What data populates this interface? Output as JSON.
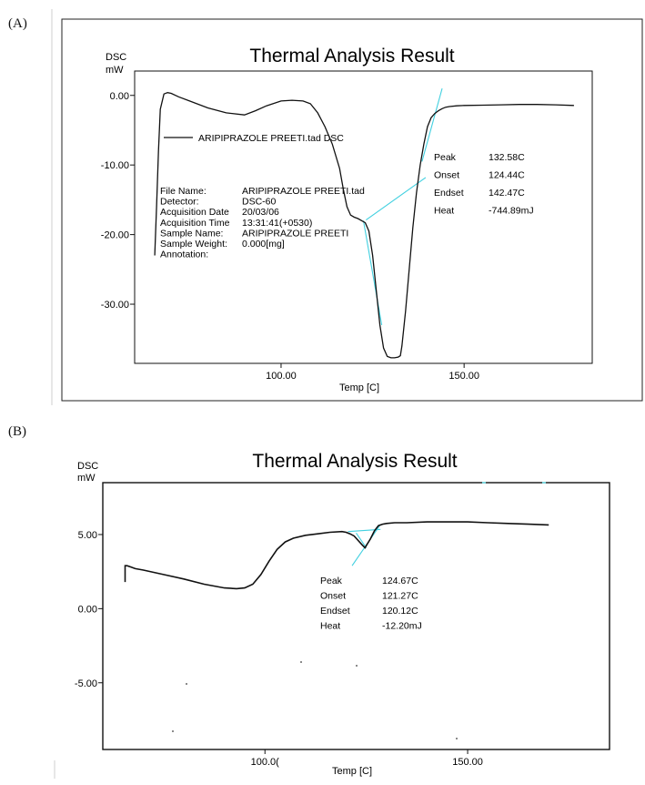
{
  "panels": [
    {
      "label": "(A)",
      "chart_data": {
        "type": "line",
        "title": "Thermal Analysis Result",
        "ylabel_line1": "DSC",
        "ylabel_line2": "mW",
        "xlabel": "Temp  [C]",
        "xlim": [
          60,
          185
        ],
        "ylim": [
          -38.5,
          3.5
        ],
        "xticks": [
          {
            "value": 100,
            "label": "100.00"
          },
          {
            "value": 150,
            "label": "150.00"
          }
        ],
        "yticks": [
          {
            "value": 0,
            "label": "0.00"
          },
          {
            "value": -10,
            "label": "-10.00"
          },
          {
            "value": -20,
            "label": "-20.00"
          },
          {
            "value": -30,
            "label": "-30.00"
          }
        ],
        "legend": "ARIPIPRAZOLE PREETI.tad  DSC",
        "series": [
          {
            "color": "#111111",
            "x": [
              65.5,
              66,
              66.5,
              67,
              68,
              69,
              70,
              72,
              75,
              80,
              85,
              90,
              93,
              96,
              100,
              103,
              106,
              108,
              110,
              112,
              114,
              116,
              117,
              118,
              119,
              120,
              121,
              122,
              123,
              124,
              125,
              126,
              127,
              128,
              129,
              130,
              131,
              132,
              132.58,
              133,
              134,
              135,
              136,
              137,
              138,
              139,
              140,
              141,
              142,
              142.47,
              143,
              144,
              145,
              146,
              148,
              150,
              155,
              160,
              165,
              170,
              175,
              180
            ],
            "y": [
              -23,
              -16,
              -8,
              -2,
              0.2,
              0.4,
              0.3,
              -0.2,
              -0.8,
              -1.8,
              -2.5,
              -2.8,
              -2.2,
              -1.5,
              -0.8,
              -0.7,
              -0.8,
              -1.2,
              -2.5,
              -4.5,
              -7,
              -10.5,
              -13.5,
              -16,
              -17.2,
              -17.5,
              -17.7,
              -18,
              -18.3,
              -19.5,
              -23,
              -28,
              -33,
              -36.3,
              -37.5,
              -37.7,
              -37.7,
              -37.6,
              -37.4,
              -36,
              -31,
              -25,
              -19,
              -14,
              -10,
              -7,
              -4.5,
              -3.2,
              -2.6,
              -2.4,
              -2.2,
              -1.9,
              -1.7,
              -1.6,
              -1.5,
              -1.45,
              -1.4,
              -1.35,
              -1.3,
              -1.3,
              -1.35,
              -1.45
            ]
          }
        ],
        "info_rows": [
          {
            "key": "File Name:",
            "value": "ARIPIPRAZOLE PREETI.tad"
          },
          {
            "key": "Detector:",
            "value": "DSC-60"
          },
          {
            "key": "Acquisition Date",
            "value": "20/03/06"
          },
          {
            "key": "Acquisition Time",
            "value": "13:31:41(+0530)"
          },
          {
            "key": "Sample Name:",
            "value": "ARIPIPRAZOLE PREETI"
          },
          {
            "key": "Sample Weight:",
            "value": "0.000[mg]"
          },
          {
            "key": "Annotation:",
            "value": ""
          }
        ],
        "results": [
          {
            "key": "Peak",
            "value": "132.58C"
          },
          {
            "key": "Onset",
            "value": "124.44C"
          },
          {
            "key": "Endset",
            "value": "142.47C"
          },
          {
            "key": "Heat",
            "value": "-744.89mJ"
          }
        ],
        "accent_color": "#40d0e0"
      }
    },
    {
      "label": "(B)",
      "chart_data": {
        "type": "line",
        "title": "Thermal Analysis Result",
        "ylabel_line1": "DSC",
        "ylabel_line2": "mW",
        "xlabel": "Temp  [C]",
        "xlim": [
          60,
          185
        ],
        "ylim": [
          -9.5,
          8.5
        ],
        "xticks": [
          {
            "value": 100,
            "label": "100.0("
          },
          {
            "value": 150,
            "label": "150.00"
          }
        ],
        "yticks": [
          {
            "value": 5,
            "label": "5.00"
          },
          {
            "value": 0,
            "label": "0.00"
          },
          {
            "value": -5,
            "label": "-5.00"
          }
        ],
        "series": [
          {
            "color": "#111111",
            "x": [
              65.5,
              65.5,
              66,
              67,
              68,
              70,
              75,
              80,
              85,
              90,
              93,
              95,
              97,
              99,
              101,
              103,
              105,
              107,
              110,
              113,
              116,
              119,
              120,
              121,
              122,
              123,
              124,
              124.67,
              125,
              126,
              127,
              128,
              129,
              130,
              132,
              135,
              140,
              145,
              150,
              155,
              160,
              165,
              170
            ],
            "y": [
              1.8,
              2.9,
              2.9,
              2.8,
              2.7,
              2.6,
              2.3,
              2.0,
              1.65,
              1.4,
              1.35,
              1.4,
              1.65,
              2.3,
              3.2,
              4.0,
              4.5,
              4.75,
              4.95,
              5.05,
              5.15,
              5.2,
              5.15,
              5.05,
              4.9,
              4.6,
              4.3,
              4.1,
              4.25,
              4.7,
              5.25,
              5.6,
              5.7,
              5.75,
              5.8,
              5.8,
              5.85,
              5.85,
              5.85,
              5.8,
              5.75,
              5.7,
              5.65
            ]
          }
        ],
        "results": [
          {
            "key": "Peak",
            "value": "124.67C"
          },
          {
            "key": "Onset",
            "value": "121.27C"
          },
          {
            "key": "Endset",
            "value": "120.12C"
          },
          {
            "key": "Heat",
            "value": "-12.20mJ"
          }
        ],
        "accent_color": "#40d0e0"
      }
    }
  ]
}
